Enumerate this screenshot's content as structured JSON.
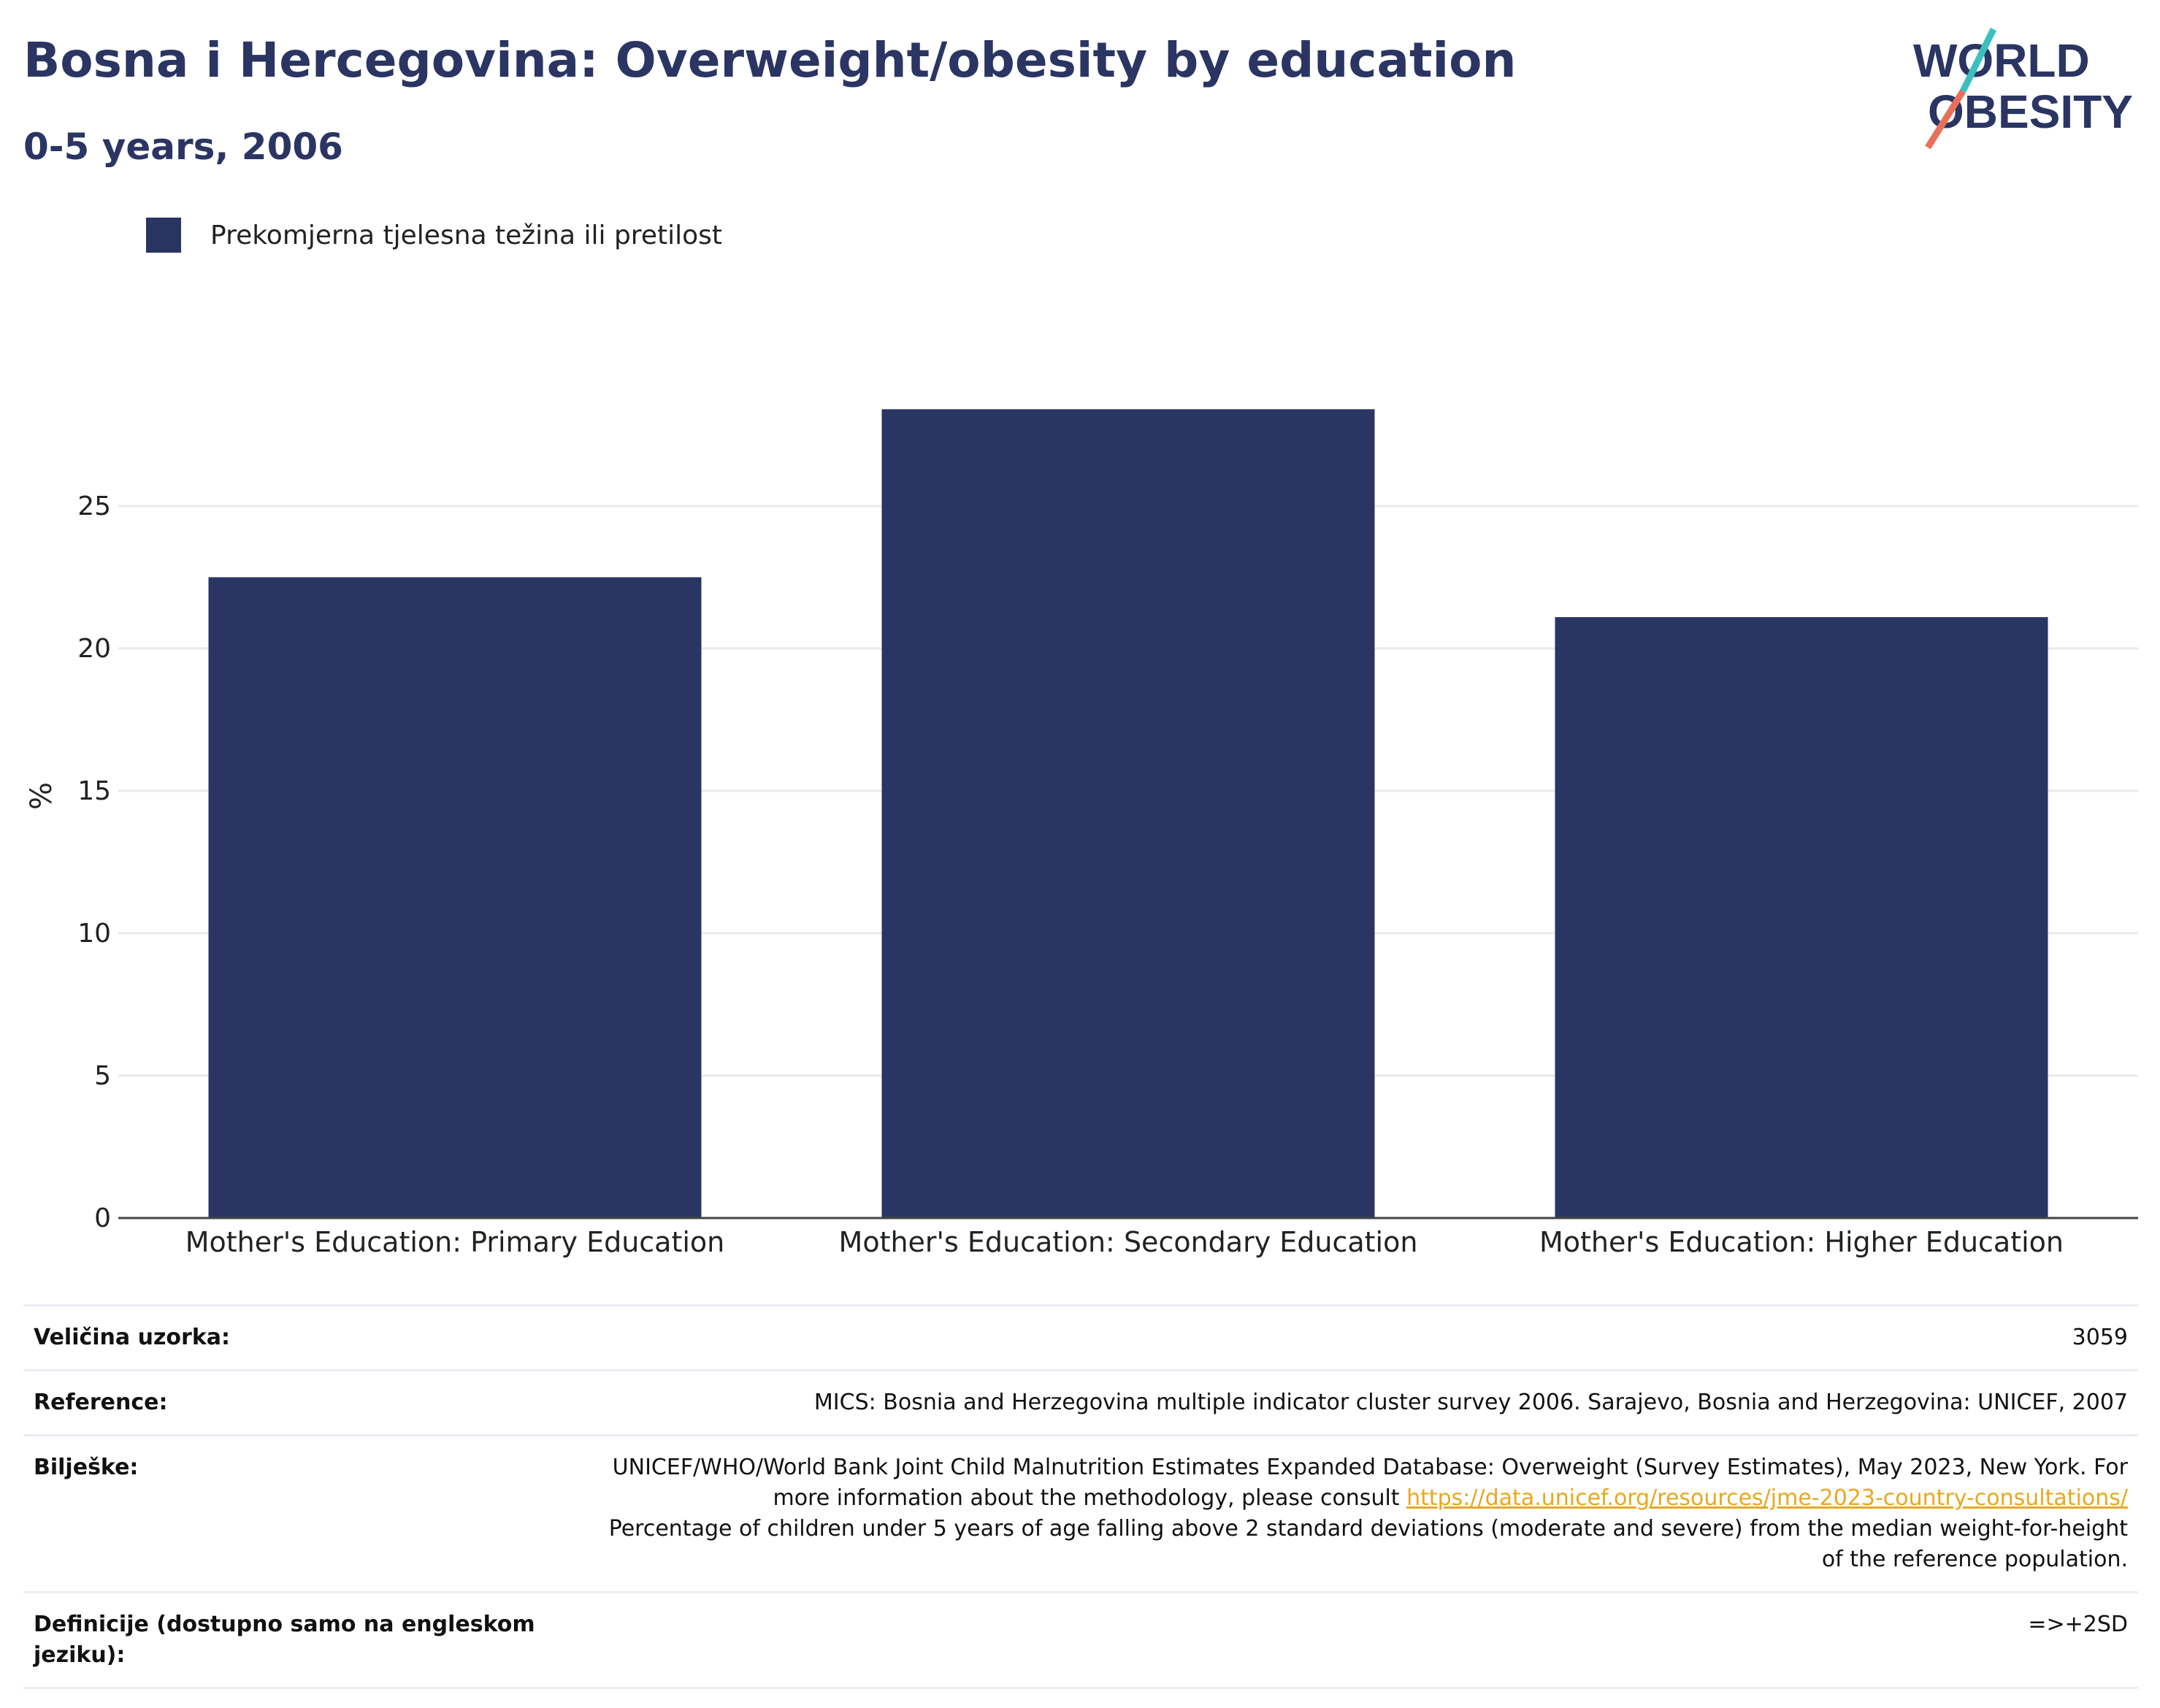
{
  "title": "Bosna i Hercegovina: Overweight/obesity by education",
  "subtitle": "0-5 years, 2006",
  "logo": {
    "line1": "WORLD",
    "line2": "OBESITY"
  },
  "colors": {
    "bar": "#2a3563",
    "title": "#2a3563",
    "link": "#e8a820",
    "logo_teal": "#3bbfbf",
    "logo_coral": "#e8705a"
  },
  "chart_data": {
    "type": "bar",
    "categories": [
      "Mother's Education: Primary Education",
      "Mother's Education: Secondary Education",
      "Mother's Education: Higher Education"
    ],
    "series": [
      {
        "name": "Prekomjerna tjelesna težina ili pretilost",
        "values": [
          22.5,
          28.4,
          21.1
        ]
      }
    ],
    "ylabel": "%",
    "xlabel": "",
    "ylim": [
      0,
      30
    ],
    "yticks": [
      0,
      5,
      10,
      15,
      20,
      25
    ],
    "grid": true,
    "legend": "top-left"
  },
  "table": {
    "sample_label": "Veličina uzorka:",
    "sample_value": "3059",
    "reference_label": "Reference:",
    "reference_value": "MICS: Bosnia and Herzegovina multiple indicator cluster survey 2006. Sarajevo, Bosnia and Herzegovina: UNICEF, 2007",
    "notes_label": "Bilješke:",
    "notes_part1": "UNICEF/WHO/World Bank Joint Child Malnutrition Estimates Expanded Database: Overweight (Survey Estimates), May 2023, New York. For more information about the methodology, please consult ",
    "notes_link": "https://data.unicef.org/resources/jme-2023-country-consultations/",
    "notes_part2": "Percentage of children under 5 years of age falling above 2 standard deviations (moderate and severe) from the median weight-for-height of the reference population.",
    "definitions_label": "Definicije (dostupno samo na engleskom jeziku):",
    "definitions_value": "=>+2SD"
  }
}
